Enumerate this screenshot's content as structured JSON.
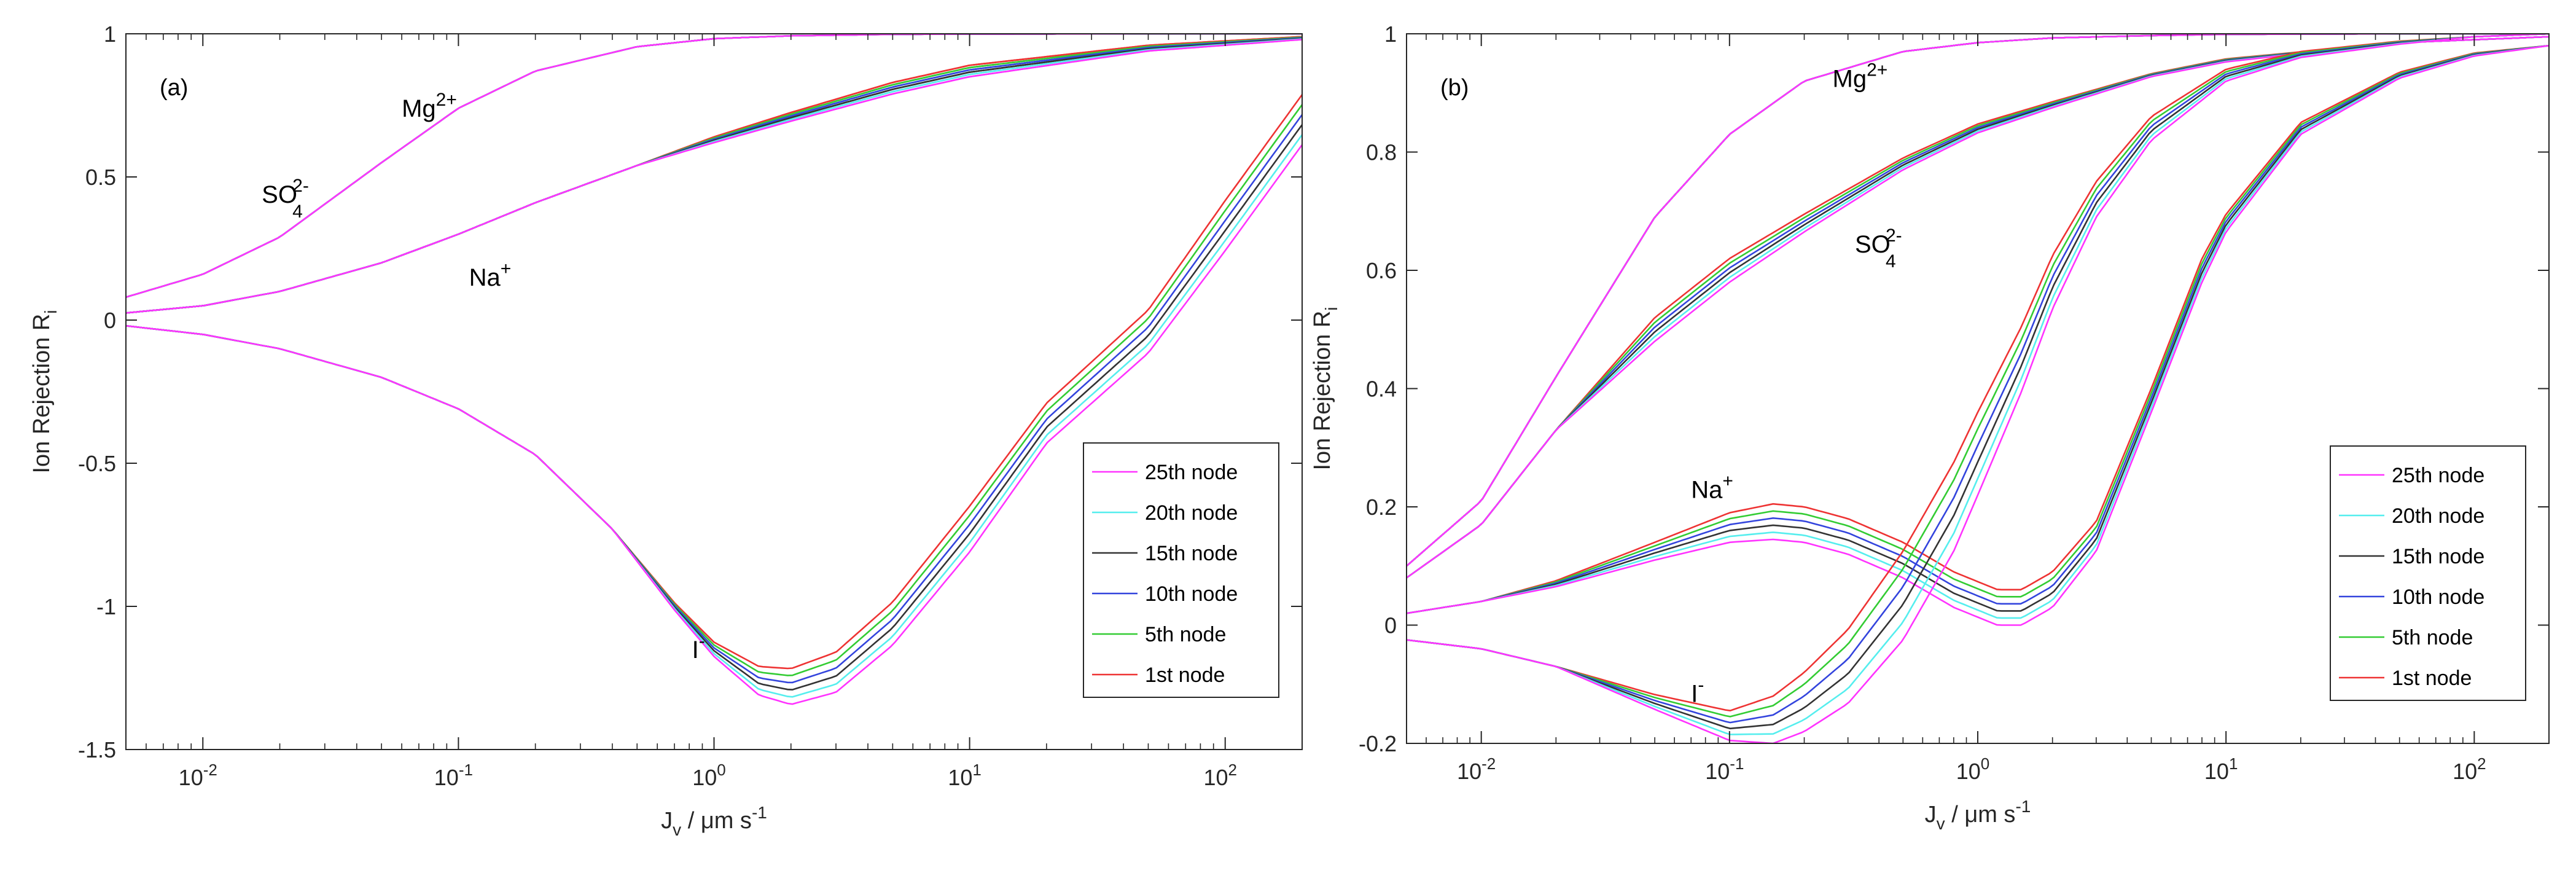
{
  "colors": {
    "node_25": "#ff33ff",
    "node_20": "#55eeee",
    "node_15": "#333333",
    "node_10": "#3344dd",
    "node_5": "#33cc33",
    "node_1": "#ee3333",
    "axis": "#262626"
  },
  "chart_data": [
    {
      "type": "line",
      "panel_label": "(a)",
      "xlabel": {
        "main": "J",
        "sub": "v",
        "rest": " / μm s",
        "sup": "-1"
      },
      "ylabel": {
        "main": "Ion Rejection R",
        "sub": "i"
      },
      "x_scale": "log",
      "xlim": [
        0.005,
        200
      ],
      "ylim": [
        -1.5,
        1
      ],
      "x_ticks": [
        {
          "value": 0.01,
          "base": "10",
          "exp": "-2"
        },
        {
          "value": 0.1,
          "base": "10",
          "exp": "-1"
        },
        {
          "value": 1,
          "base": "10",
          "exp": "0"
        },
        {
          "value": 10,
          "base": "10",
          "exp": "1"
        },
        {
          "value": 100,
          "base": "10",
          "exp": "2"
        }
      ],
      "y_ticks": [
        {
          "value": 1,
          "label": "1"
        },
        {
          "value": 0.5,
          "label": "0.5"
        },
        {
          "value": 0,
          "label": "0"
        },
        {
          "value": -0.5,
          "label": "-0.5"
        },
        {
          "value": -1,
          "label": "-1"
        },
        {
          "value": -1.5,
          "label": "-1.5"
        }
      ],
      "legend": {
        "position": "lower-right",
        "entries": [
          {
            "label": "25th node",
            "color": "#ff33ff"
          },
          {
            "label": "20th node",
            "color": "#55eeee"
          },
          {
            "label": "15th node",
            "color": "#333333"
          },
          {
            "label": "10th node",
            "color": "#3344dd"
          },
          {
            "label": "5th node",
            "color": "#33cc33"
          },
          {
            "label": "1st node",
            "color": "#ee3333"
          }
        ]
      },
      "annotations": [
        {
          "base": "Mg",
          "sup": "2+",
          "sub": "",
          "x": 0.06,
          "y": 0.71
        },
        {
          "base": "SO",
          "sup": "2-",
          "sub": "4",
          "x": 0.017,
          "y": 0.41
        },
        {
          "base": "Na",
          "sup": "+",
          "sub": "",
          "x": 0.11,
          "y": 0.12
        },
        {
          "base": "I",
          "sup": "-",
          "sub": "",
          "x": 0.82,
          "y": -1.18
        }
      ],
      "ions": [
        {
          "name": "Mg2+",
          "x": [
            0.005,
            0.01,
            0.02,
            0.05,
            0.1,
            0.2,
            0.5,
            1,
            2,
            5,
            10,
            50,
            200
          ],
          "y": [
            0.08,
            0.16,
            0.29,
            0.55,
            0.74,
            0.87,
            0.955,
            0.983,
            0.993,
            0.998,
            0.999,
            1,
            1
          ],
          "spread": [
            0,
            0,
            0,
            0,
            0,
            0,
            0,
            0,
            0,
            0,
            0,
            0,
            0
          ]
        },
        {
          "name": "SO42-",
          "x": [
            0.005,
            0.01,
            0.02,
            0.05,
            0.1,
            0.2,
            0.5,
            1,
            2,
            5,
            10,
            50,
            200
          ],
          "y": [
            0.025,
            0.05,
            0.1,
            0.2,
            0.3,
            0.41,
            0.54,
            0.63,
            0.71,
            0.81,
            0.87,
            0.95,
            0.985
          ],
          "spread": [
            0,
            0,
            0,
            0,
            0,
            0,
            0,
            0.004,
            0.006,
            0.008,
            0.008,
            0.004,
            0.002
          ]
        },
        {
          "name": "Na+",
          "x": [
            0.005,
            0.01,
            0.02,
            0.05,
            0.1,
            0.2,
            0.5,
            1,
            2,
            5,
            10,
            50,
            200
          ],
          "y": [
            0.025,
            0.05,
            0.1,
            0.2,
            0.3,
            0.41,
            0.54,
            0.63,
            0.71,
            0.81,
            0.87,
            0.95,
            0.985
          ],
          "spread": [
            0,
            0,
            0,
            0,
            0,
            0,
            0,
            0.004,
            0.006,
            0.008,
            0.008,
            0.004,
            0.002
          ]
        },
        {
          "name": "I-",
          "x": [
            0.005,
            0.01,
            0.02,
            0.05,
            0.1,
            0.2,
            0.4,
            0.7,
            1,
            1.5,
            2,
            3,
            5,
            10,
            20,
            50,
            100,
            200
          ],
          "y": [
            -0.02,
            -0.05,
            -0.1,
            -0.2,
            -0.31,
            -0.47,
            -0.73,
            -1.0,
            -1.15,
            -1.26,
            -1.28,
            -1.23,
            -1.06,
            -0.73,
            -0.36,
            -0.04,
            0.33,
            0.7
          ],
          "spread": [
            0,
            0,
            0,
            0,
            0,
            0,
            0,
            0.005,
            0.01,
            0.02,
            0.025,
            0.028,
            0.03,
            0.032,
            0.028,
            0.03,
            0.035,
            0.035
          ]
        }
      ]
    },
    {
      "type": "line",
      "panel_label": "(b)",
      "xlabel": {
        "main": "J",
        "sub": "v",
        "rest": " / μm s",
        "sup": "-1"
      },
      "ylabel": {
        "main": "Ion Rejection R",
        "sub": "i"
      },
      "x_scale": "log",
      "xlim": [
        0.005,
        200
      ],
      "ylim": [
        -0.2,
        1
      ],
      "x_ticks": [
        {
          "value": 0.01,
          "base": "10",
          "exp": "-2"
        },
        {
          "value": 0.1,
          "base": "10",
          "exp": "-1"
        },
        {
          "value": 1,
          "base": "10",
          "exp": "0"
        },
        {
          "value": 10,
          "base": "10",
          "exp": "1"
        },
        {
          "value": 100,
          "base": "10",
          "exp": "2"
        }
      ],
      "y_ticks": [
        {
          "value": 1,
          "label": "1"
        },
        {
          "value": 0.8,
          "label": "0.8"
        },
        {
          "value": 0.6,
          "label": "0.6"
        },
        {
          "value": 0.4,
          "label": "0.4"
        },
        {
          "value": 0.2,
          "label": "0.2"
        },
        {
          "value": 0,
          "label": "0"
        },
        {
          "value": -0.2,
          "label": "-0.2"
        }
      ],
      "legend": {
        "position": "lower-right",
        "entries": [
          {
            "label": "25th node",
            "color": "#ff33ff"
          },
          {
            "label": "20th node",
            "color": "#55eeee"
          },
          {
            "label": "15th node",
            "color": "#333333"
          },
          {
            "label": "10th node",
            "color": "#3344dd"
          },
          {
            "label": "5th node",
            "color": "#33cc33"
          },
          {
            "label": "1st node",
            "color": "#ee3333"
          }
        ]
      },
      "annotations": [
        {
          "base": "Mg",
          "sup": "2+",
          "sub": "",
          "x": 0.26,
          "y": 0.91
        },
        {
          "base": "SO",
          "sup": "2-",
          "sub": "4",
          "x": 0.32,
          "y": 0.63
        },
        {
          "base": "Na",
          "sup": "+",
          "sub": "",
          "x": 0.07,
          "y": 0.215
        },
        {
          "base": "I",
          "sup": "-",
          "sub": "",
          "x": 0.07,
          "y": -0.13
        }
      ],
      "ions": [
        {
          "name": "Mg2+",
          "x": [
            0.005,
            0.01,
            0.02,
            0.05,
            0.1,
            0.2,
            0.5,
            1,
            2,
            5,
            10,
            50,
            200
          ],
          "y": [
            0.1,
            0.21,
            0.42,
            0.69,
            0.83,
            0.92,
            0.97,
            0.985,
            0.993,
            0.997,
            0.999,
            1,
            1
          ],
          "spread": [
            0,
            0,
            0,
            0,
            0,
            0,
            0,
            0,
            0,
            0,
            0,
            0,
            0
          ]
        },
        {
          "name": "SO42-",
          "x": [
            0.005,
            0.01,
            0.02,
            0.05,
            0.1,
            0.2,
            0.5,
            1,
            2,
            5,
            10,
            50,
            200
          ],
          "y": [
            0.08,
            0.17,
            0.33,
            0.5,
            0.6,
            0.68,
            0.78,
            0.84,
            0.88,
            0.93,
            0.955,
            0.985,
            0.995
          ],
          "spread": [
            0,
            0,
            0,
            0.008,
            0.008,
            0.006,
            0.004,
            0.003,
            0.002,
            0.001,
            0.001,
            0,
            0
          ]
        },
        {
          "name": "Na+",
          "x": [
            0.005,
            0.01,
            0.02,
            0.05,
            0.1,
            0.15,
            0.2,
            0.3,
            0.5,
            0.8,
            1.2,
            1.5,
            2,
            3,
            5,
            8,
            10,
            20,
            50,
            100,
            200
          ],
          "y": [
            0.02,
            0.04,
            0.07,
            0.125,
            0.165,
            0.175,
            0.17,
            0.15,
            0.11,
            0.06,
            0.03,
            0.03,
            0.06,
            0.15,
            0.38,
            0.6,
            0.68,
            0.84,
            0.93,
            0.965,
            0.98
          ],
          "spread": [
            0,
            0,
            0.002,
            0.006,
            0.01,
            0.012,
            0.012,
            0.012,
            0.012,
            0.012,
            0.012,
            0.012,
            0.012,
            0.01,
            0.008,
            0.008,
            0.006,
            0.004,
            0.002,
            0.001,
            0
          ]
        },
        {
          "name": "I-",
          "x": [
            0.005,
            0.01,
            0.02,
            0.05,
            0.1,
            0.15,
            0.2,
            0.3,
            0.5,
            0.8,
            1,
            1.5,
            2,
            3,
            5,
            10,
            20,
            50,
            100,
            200
          ],
          "y": [
            -0.025,
            -0.04,
            -0.07,
            -0.13,
            -0.17,
            -0.16,
            -0.13,
            -0.07,
            0.05,
            0.2,
            0.29,
            0.45,
            0.58,
            0.72,
            0.84,
            0.93,
            0.965,
            0.985,
            0.995,
            1
          ],
          "spread": [
            0,
            0,
            0,
            0.005,
            0.01,
            0.016,
            0.02,
            0.025,
            0.03,
            0.03,
            0.028,
            0.022,
            0.018,
            0.012,
            0.008,
            0.004,
            0.002,
            0.001,
            0,
            0
          ]
        }
      ]
    }
  ]
}
